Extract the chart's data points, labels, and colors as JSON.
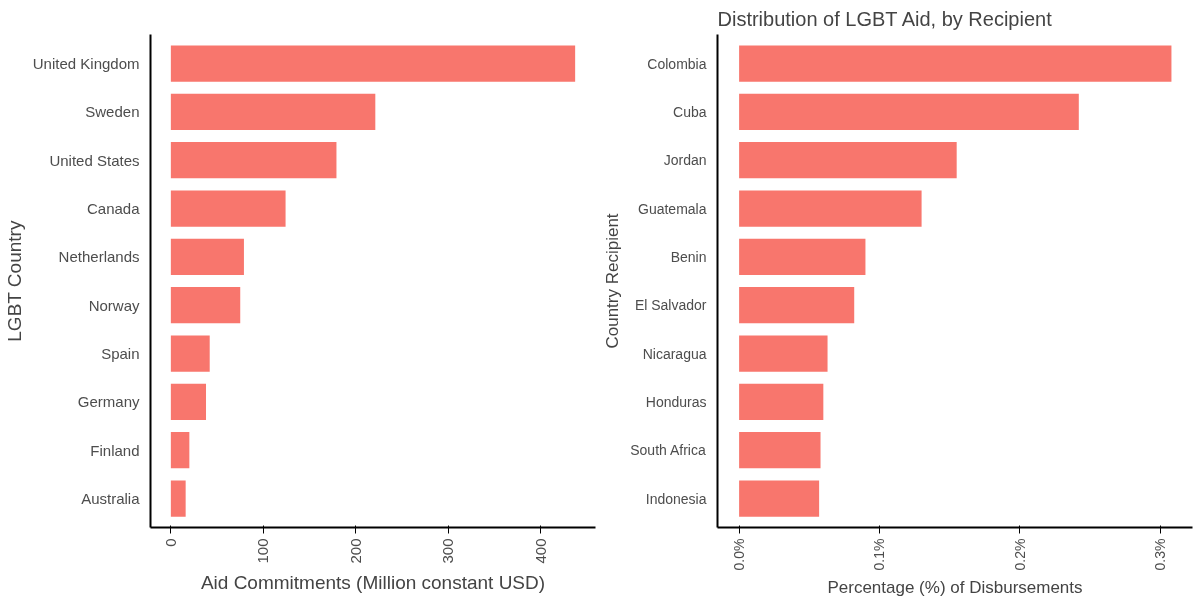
{
  "chart_data": [
    {
      "type": "bar",
      "orientation": "horizontal",
      "xlabel": "Aid Commitments (Million constant USD)",
      "ylabel": "LGBT Country",
      "categories": [
        "United Kingdom",
        "Sweden",
        "United States",
        "Canada",
        "Netherlands",
        "Norway",
        "Spain",
        "Germany",
        "Finland",
        "Australia"
      ],
      "values": [
        437,
        221,
        179,
        124,
        79,
        75,
        42,
        38,
        20,
        16
      ],
      "color": "#f8766d",
      "xlim": [
        -22,
        459
      ],
      "xticks": [
        0,
        100,
        200,
        300,
        400
      ]
    },
    {
      "type": "bar",
      "orientation": "horizontal",
      "title": "Distribution of LGBT Aid, by Recipient",
      "xlabel": "Percentage (%) of Disbursements",
      "ylabel": "Country Recipient",
      "categories": [
        "Colombia",
        "Cuba",
        "Jordan",
        "Guatemala",
        "Benin",
        "El Salvador",
        "Nicaragua",
        "Honduras",
        "South Africa",
        "Indonesia"
      ],
      "values": [
        0.308,
        0.242,
        0.155,
        0.13,
        0.09,
        0.082,
        0.063,
        0.06,
        0.058,
        0.057
      ],
      "color": "#f8766d",
      "xlim": [
        -0.0154,
        0.323
      ],
      "xticks": [
        {
          "value": 0,
          "label": "0.0%"
        },
        {
          "value": 0.1,
          "label": "0.1%"
        },
        {
          "value": 0.2,
          "label": "0.2%"
        },
        {
          "value": 0.3,
          "label": "0.3%"
        }
      ]
    }
  ]
}
